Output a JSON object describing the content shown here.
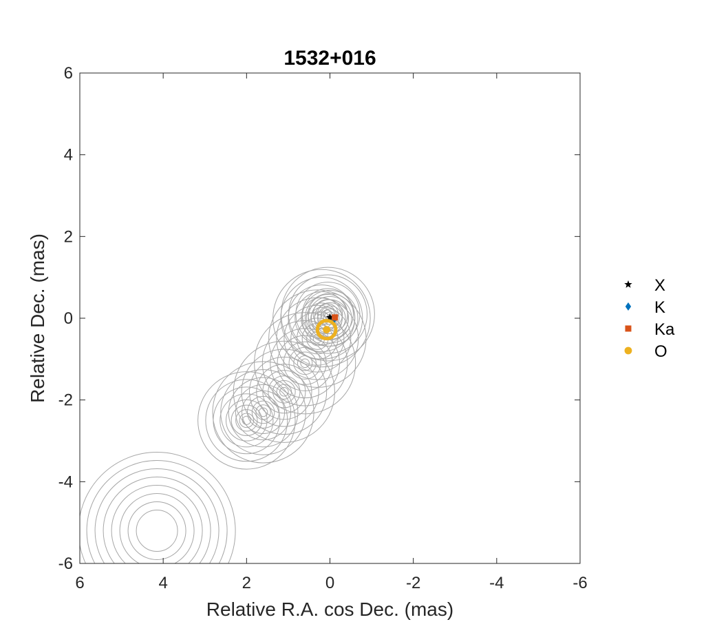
{
  "chart_data": {
    "type": "scatter",
    "title": "1532+016",
    "xlabel": "Relative R.A. cos Dec. (mas)",
    "ylabel": "Relative Dec. (mas)",
    "xlim": [
      6,
      -6
    ],
    "ylim": [
      -6,
      6
    ],
    "x_reversed": true,
    "xticks": [
      6,
      4,
      2,
      0,
      -2,
      -4,
      -6
    ],
    "yticks": [
      -6,
      -4,
      -2,
      0,
      2,
      4,
      6
    ],
    "grid": false,
    "legend_position": "outside-right",
    "background": "contour map",
    "contour_color": "#a6a6a6",
    "series": [
      {
        "name": "X",
        "marker": "star",
        "color": "#000000",
        "x": [
          0.0
        ],
        "y": [
          0.02
        ]
      },
      {
        "name": "K",
        "marker": "diamond",
        "color": "#0072bd",
        "x": [
          -0.08
        ],
        "y": [
          -0.06
        ]
      },
      {
        "name": "Ka",
        "marker": "square",
        "color": "#d95319",
        "x": [
          -0.12
        ],
        "y": [
          0.02
        ]
      },
      {
        "name": "O",
        "marker": "circle",
        "color": "#edb120",
        "x": [
          0.08
        ],
        "y": [
          -0.28
        ],
        "error_ellipse": [
          0.22,
          0.22
        ]
      }
    ]
  }
}
